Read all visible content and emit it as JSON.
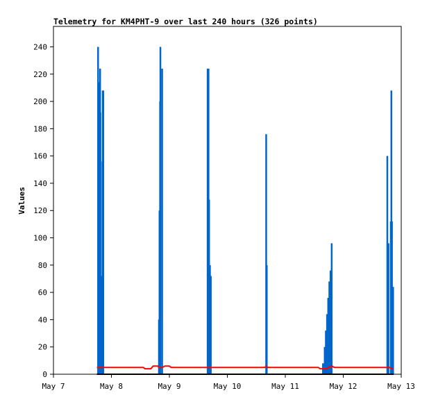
{
  "chart_data": {
    "type": "line",
    "title": "Telemetry for KM4PHT-9 over last 240 hours (326 points)",
    "xlabel": "",
    "ylabel": "Values",
    "x_ticks": [
      "May 7",
      "May 8",
      "May 9",
      "May 10",
      "May 11",
      "May 12",
      "May 13"
    ],
    "xlim_days": [
      0,
      6
    ],
    "ylim": [
      0,
      255
    ],
    "y_ticks": [
      0,
      20,
      40,
      60,
      80,
      100,
      120,
      140,
      160,
      180,
      200,
      220,
      240
    ],
    "grid": false,
    "series": [
      {
        "color": "#0066cc",
        "style": "spikes",
        "points": [
          [
            0.77,
            240
          ],
          [
            0.785,
            192
          ],
          [
            0.795,
            214
          ],
          [
            0.805,
            224
          ],
          [
            0.81,
            192
          ],
          [
            0.82,
            72
          ],
          [
            0.835,
            52
          ],
          [
            0.845,
            156
          ],
          [
            0.85,
            208
          ],
          [
            0.86,
            208
          ],
          [
            1.82,
            40
          ],
          [
            1.83,
            120
          ],
          [
            1.84,
            200
          ],
          [
            1.845,
            240
          ],
          [
            1.875,
            224
          ],
          [
            2.66,
            224
          ],
          [
            2.675,
            224
          ],
          [
            2.685,
            128
          ],
          [
            2.7,
            80
          ],
          [
            2.715,
            72
          ],
          [
            3.67,
            176
          ],
          [
            3.68,
            80
          ],
          [
            4.65,
            8
          ],
          [
            4.68,
            20
          ],
          [
            4.7,
            32
          ],
          [
            4.72,
            44
          ],
          [
            4.74,
            56
          ],
          [
            4.76,
            68
          ],
          [
            4.78,
            76
          ],
          [
            4.8,
            96
          ],
          [
            5.76,
            160
          ],
          [
            5.78,
            96
          ],
          [
            5.82,
            112
          ],
          [
            5.83,
            208
          ],
          [
            5.84,
            112
          ],
          [
            5.86,
            64
          ]
        ]
      },
      {
        "color": "#ff0000",
        "style": "line",
        "points": [
          [
            0.75,
            5
          ],
          [
            1.55,
            5
          ],
          [
            1.58,
            4
          ],
          [
            1.68,
            4
          ],
          [
            1.72,
            6
          ],
          [
            1.8,
            6
          ],
          [
            1.82,
            5
          ],
          [
            1.88,
            5
          ],
          [
            1.92,
            6
          ],
          [
            2.0,
            6
          ],
          [
            2.03,
            5
          ],
          [
            3.65,
            5
          ],
          [
            3.67,
            6
          ],
          [
            3.7,
            5
          ],
          [
            4.57,
            5
          ],
          [
            4.6,
            4
          ],
          [
            4.7,
            4
          ],
          [
            4.75,
            5
          ],
          [
            4.8,
            6
          ],
          [
            4.85,
            5
          ],
          [
            5.8,
            5
          ],
          [
            5.84,
            4
          ],
          [
            5.86,
            4
          ]
        ]
      },
      {
        "color": "#000000",
        "style": "line",
        "points": [
          [
            0.75,
            0
          ],
          [
            5.87,
            0
          ]
        ]
      }
    ]
  }
}
